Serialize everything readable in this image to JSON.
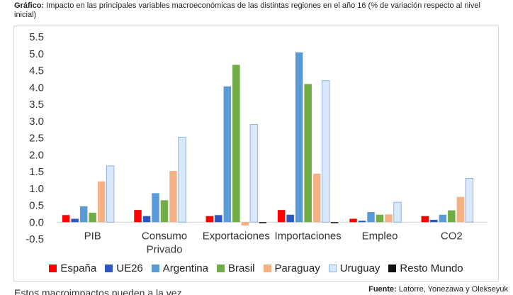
{
  "caption": {
    "label": "Gráfico:",
    "text": "Impacto en las principales variables macroeconómicas de las distintas regiones en el año 16 (% de variación respecto al nivel inicial)"
  },
  "footer": {
    "source_label": "Fuente:",
    "source_text": "Latorre, Yonezawa y Olekseyuk",
    "cut_text": "Estos macroimpactos pueden a la vez..."
  },
  "chart_data": {
    "type": "bar",
    "title": "",
    "xlabel": "",
    "ylabel": "",
    "ylim": [
      -0.5,
      5.5
    ],
    "yticks": [
      "5.5",
      "5.0",
      "4.5",
      "4.0",
      "3.5",
      "3.0",
      "2.5",
      "2.0",
      "1.5",
      "1.0",
      "0.5",
      "0.0",
      "-0.5"
    ],
    "ytick_values": [
      5.5,
      5.0,
      4.5,
      4.0,
      3.5,
      3.0,
      2.5,
      2.0,
      1.5,
      1.0,
      0.5,
      0.0,
      -0.5
    ],
    "grid": false,
    "legend_position": "bottom",
    "categories": [
      [
        "PIB"
      ],
      [
        "Consumo",
        "Privado"
      ],
      [
        "Exportaciones"
      ],
      [
        "Importaciones"
      ],
      [
        "Empleo"
      ],
      [
        "CO2"
      ]
    ],
    "series": [
      {
        "name": "España",
        "color": "#ff0000",
        "values": [
          0.21,
          0.36,
          0.18,
          0.36,
          0.1,
          0.18
        ]
      },
      {
        "name": "UE26",
        "color": "#2e55c4",
        "values": [
          0.1,
          0.18,
          0.21,
          0.22,
          0.04,
          0.07
        ]
      },
      {
        "name": "Argentina",
        "color": "#5b9bd5",
        "values": [
          0.47,
          0.86,
          4.03,
          5.04,
          0.3,
          0.22
        ]
      },
      {
        "name": "Brasil",
        "color": "#70ad47",
        "values": [
          0.28,
          0.65,
          4.67,
          4.1,
          0.22,
          0.35
        ]
      },
      {
        "name": "Paraguay",
        "color": "#f4b183",
        "values": [
          1.21,
          1.52,
          -0.1,
          1.44,
          0.23,
          0.75
        ]
      },
      {
        "name": "Uruguay",
        "color": "#dae8fc",
        "stroke": "#8eb4e3",
        "values": [
          1.67,
          2.52,
          2.9,
          4.2,
          0.59,
          1.3
        ]
      },
      {
        "name": "Resto Mundo",
        "color": "#111111",
        "values": [
          0.0,
          0.0,
          -0.03,
          -0.03,
          0.0,
          0.0
        ]
      }
    ]
  }
}
